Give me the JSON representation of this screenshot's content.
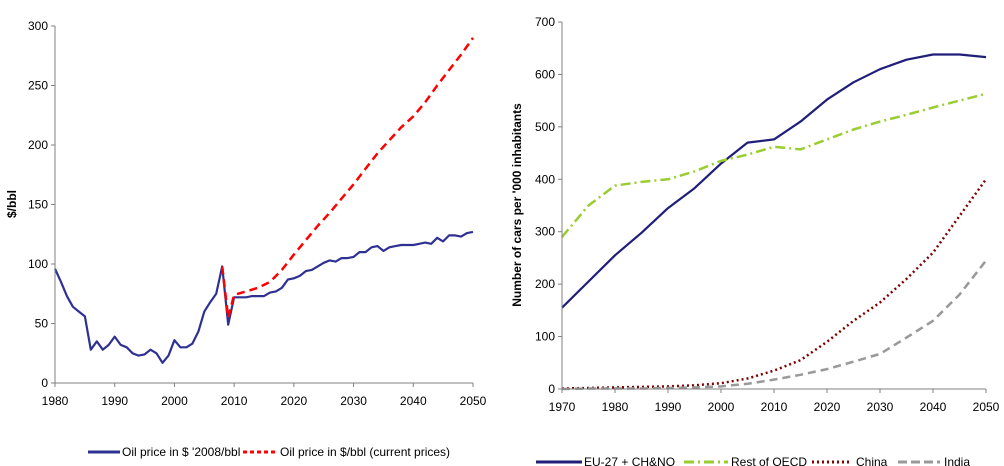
{
  "chart_data": [
    {
      "type": "line",
      "title": "",
      "xlabel": "",
      "ylabel": "$/bbl",
      "xlim": [
        1980,
        2050
      ],
      "ylim": [
        0,
        300
      ],
      "xticks": [
        "1980",
        "1990",
        "2000",
        "2010",
        "2020",
        "2030",
        "2040",
        "2050"
      ],
      "yticks": [
        "0",
        "50",
        "100",
        "150",
        "200",
        "250",
        "300"
      ],
      "legend_position": "bottom",
      "grid": false,
      "series": [
        {
          "name": "Oil price in $ '2008/bbl",
          "color": "#2e3192",
          "style": "solid",
          "x": [
            1980,
            1981,
            1982,
            1983,
            1984,
            1985,
            1986,
            1987,
            1988,
            1989,
            1990,
            1991,
            1992,
            1993,
            1994,
            1995,
            1996,
            1997,
            1998,
            1999,
            2000,
            2001,
            2002,
            2003,
            2004,
            2005,
            2006,
            2007,
            2008,
            2009,
            2010,
            2011,
            2012,
            2013,
            2014,
            2015,
            2016,
            2017,
            2018,
            2019,
            2020,
            2021,
            2022,
            2023,
            2024,
            2025,
            2026,
            2027,
            2028,
            2029,
            2030,
            2031,
            2032,
            2033,
            2034,
            2035,
            2036,
            2037,
            2038,
            2039,
            2040,
            2041,
            2042,
            2043,
            2044,
            2045,
            2046,
            2047,
            2048,
            2049,
            2050
          ],
          "values": [
            96,
            85,
            73,
            64,
            60,
            56,
            28,
            35,
            28,
            32,
            39,
            32,
            30,
            25,
            23,
            24,
            28,
            25,
            17,
            23,
            36,
            30,
            30,
            33,
            43,
            60,
            68,
            75,
            98,
            49,
            72,
            72,
            72,
            73,
            73,
            73,
            76,
            77,
            80,
            87,
            88,
            90,
            94,
            95,
            98,
            101,
            103,
            102,
            105,
            105,
            106,
            110,
            110,
            114,
            115,
            111,
            114,
            115,
            116,
            116,
            116,
            117,
            118,
            117,
            122,
            119,
            124,
            124,
            123,
            126,
            127
          ]
        },
        {
          "name": "Oil price in $/bbl (current prices)",
          "color": "#ff0000",
          "style": "dashed",
          "x": [
            2008,
            2009,
            2010,
            2012,
            2014,
            2016,
            2018,
            2020,
            2022,
            2024,
            2026,
            2028,
            2030,
            2032,
            2034,
            2036,
            2038,
            2040,
            2042,
            2044,
            2046,
            2048,
            2050
          ],
          "values": [
            98,
            55,
            74,
            77,
            80,
            85,
            95,
            108,
            120,
            132,
            143,
            155,
            167,
            180,
            193,
            204,
            215,
            224,
            236,
            250,
            263,
            276,
            290
          ]
        }
      ]
    },
    {
      "type": "line",
      "title": "",
      "xlabel": "",
      "ylabel": "Number of cars per '000 inhabitants",
      "xlim": [
        1970,
        2050
      ],
      "ylim": [
        0,
        700
      ],
      "xticks": [
        "1970",
        "1980",
        "1990",
        "2000",
        "2010",
        "2020",
        "2030",
        "2040",
        "2050"
      ],
      "yticks": [
        "0",
        "100",
        "200",
        "300",
        "400",
        "500",
        "600",
        "700"
      ],
      "legend_position": "bottom",
      "grid": false,
      "series": [
        {
          "name": "EU-27 + CH&NO",
          "color": "#1f1f7a",
          "style": "solid",
          "x": [
            1970,
            1975,
            1980,
            1985,
            1990,
            1995,
            2000,
            2005,
            2010,
            2015,
            2020,
            2025,
            2030,
            2035,
            2040,
            2045,
            2050
          ],
          "values": [
            155,
            205,
            255,
            298,
            345,
            383,
            430,
            470,
            476,
            510,
            552,
            585,
            610,
            628,
            638,
            638,
            633
          ]
        },
        {
          "name": "Rest of OECD",
          "color": "#9acd32",
          "style": "dashdot",
          "x": [
            1970,
            1975,
            1980,
            1985,
            1990,
            1995,
            2000,
            2005,
            2010,
            2015,
            2020,
            2025,
            2030,
            2035,
            2040,
            2045,
            2050
          ],
          "values": [
            290,
            350,
            388,
            395,
            400,
            415,
            435,
            447,
            462,
            457,
            476,
            495,
            510,
            523,
            537,
            550,
            563
          ]
        },
        {
          "name": "China",
          "color": "#800000",
          "style": "dotted",
          "x": [
            1970,
            1975,
            1980,
            1985,
            1990,
            1995,
            2000,
            2005,
            2010,
            2015,
            2020,
            2025,
            2030,
            2035,
            2040,
            2045,
            2050
          ],
          "values": [
            1,
            2,
            3,
            4,
            5,
            7,
            11,
            20,
            35,
            55,
            90,
            130,
            165,
            210,
            260,
            330,
            400
          ]
        },
        {
          "name": "India",
          "color": "#999999",
          "style": "dashed",
          "x": [
            1970,
            1975,
            1980,
            1985,
            1990,
            1995,
            2000,
            2005,
            2010,
            2015,
            2020,
            2025,
            2030,
            2035,
            2040,
            2045,
            2050
          ],
          "values": [
            0,
            1,
            1,
            1,
            2,
            3,
            5,
            10,
            18,
            27,
            38,
            52,
            67,
            98,
            130,
            180,
            245
          ]
        }
      ]
    }
  ]
}
